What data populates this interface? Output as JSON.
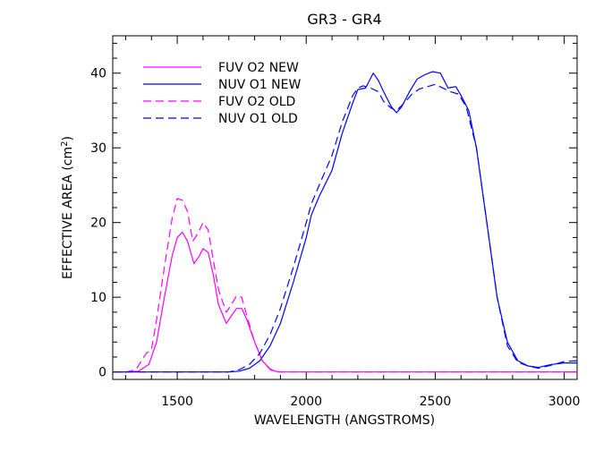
{
  "chart_data": {
    "type": "line",
    "title": "GR3 - GR4",
    "xlabel": "WAVELENGTH (ANGSTROMS)",
    "ylabel": "EFFECTIVE AREA (cm",
    "ylabel_sup": "2",
    "ylabel_end": ")",
    "xlim": [
      1250,
      3050
    ],
    "ylim": [
      -1,
      45
    ],
    "xticks": [
      1500,
      2000,
      2500,
      3000
    ],
    "yticks": [
      0,
      10,
      20,
      30,
      40
    ],
    "grid": false,
    "legend_position": "top-left",
    "series": [
      {
        "name": "FUV O2 NEW",
        "color": "#ff00ff",
        "dash": "solid",
        "points": [
          [
            1250,
            0
          ],
          [
            1300,
            0
          ],
          [
            1350,
            0.1
          ],
          [
            1390,
            1
          ],
          [
            1420,
            4
          ],
          [
            1450,
            10
          ],
          [
            1480,
            15.5
          ],
          [
            1500,
            18
          ],
          [
            1520,
            18.7
          ],
          [
            1540,
            17.5
          ],
          [
            1565,
            14.5
          ],
          [
            1585,
            15.5
          ],
          [
            1600,
            16.5
          ],
          [
            1620,
            16
          ],
          [
            1640,
            13
          ],
          [
            1660,
            9
          ],
          [
            1690,
            6.5
          ],
          [
            1710,
            7.5
          ],
          [
            1730,
            8.5
          ],
          [
            1750,
            8.5
          ],
          [
            1770,
            7
          ],
          [
            1800,
            4
          ],
          [
            1830,
            1.5
          ],
          [
            1860,
            0.4
          ],
          [
            1880,
            0.1
          ],
          [
            1900,
            0
          ],
          [
            2000,
            0
          ],
          [
            2500,
            0
          ],
          [
            3050,
            0
          ]
        ]
      },
      {
        "name": "NUV O1 NEW",
        "color": "#0000ff",
        "dash": "solid",
        "points": [
          [
            1250,
            0
          ],
          [
            1700,
            0
          ],
          [
            1740,
            0.1
          ],
          [
            1780,
            0.5
          ],
          [
            1820,
            1.5
          ],
          [
            1860,
            3.5
          ],
          [
            1900,
            6.5
          ],
          [
            1950,
            12
          ],
          [
            2000,
            18
          ],
          [
            2020,
            21
          ],
          [
            2050,
            23.5
          ],
          [
            2100,
            27
          ],
          [
            2140,
            32
          ],
          [
            2180,
            36
          ],
          [
            2200,
            37.8
          ],
          [
            2230,
            38
          ],
          [
            2260,
            40
          ],
          [
            2280,
            39
          ],
          [
            2300,
            37.5
          ],
          [
            2330,
            35.5
          ],
          [
            2350,
            34.7
          ],
          [
            2370,
            35.5
          ],
          [
            2400,
            37.5
          ],
          [
            2430,
            39.2
          ],
          [
            2460,
            39.8
          ],
          [
            2490,
            40.2
          ],
          [
            2520,
            40
          ],
          [
            2550,
            38
          ],
          [
            2580,
            38.2
          ],
          [
            2600,
            37
          ],
          [
            2630,
            35
          ],
          [
            2660,
            30
          ],
          [
            2700,
            20
          ],
          [
            2740,
            10
          ],
          [
            2780,
            4
          ],
          [
            2820,
            1.5
          ],
          [
            2860,
            0.8
          ],
          [
            2900,
            0.6
          ],
          [
            2950,
            1
          ],
          [
            3000,
            1.2
          ],
          [
            3050,
            1.2
          ]
        ]
      },
      {
        "name": "FUV O2 OLD",
        "color": "#ff00ff",
        "dash": "dashed",
        "points": [
          [
            1250,
            0
          ],
          [
            1300,
            0
          ],
          [
            1340,
            0.3
          ],
          [
            1380,
            2.5
          ],
          [
            1400,
            3
          ],
          [
            1420,
            7
          ],
          [
            1450,
            14
          ],
          [
            1480,
            20.5
          ],
          [
            1500,
            23.2
          ],
          [
            1520,
            23
          ],
          [
            1540,
            21.5
          ],
          [
            1560,
            17.5
          ],
          [
            1580,
            18.5
          ],
          [
            1600,
            20
          ],
          [
            1620,
            19
          ],
          [
            1640,
            15
          ],
          [
            1660,
            11
          ],
          [
            1690,
            8
          ],
          [
            1710,
            9
          ],
          [
            1730,
            10.2
          ],
          [
            1750,
            10
          ],
          [
            1770,
            7.5
          ],
          [
            1800,
            4
          ],
          [
            1830,
            1.5
          ],
          [
            1860,
            0.3
          ],
          [
            1880,
            0
          ],
          [
            2000,
            0
          ],
          [
            2500,
            0
          ],
          [
            3050,
            0
          ]
        ]
      },
      {
        "name": "NUV O1 OLD",
        "color": "#0000ff",
        "dash": "dashed",
        "points": [
          [
            1250,
            0
          ],
          [
            1700,
            0
          ],
          [
            1740,
            0.3
          ],
          [
            1780,
            1
          ],
          [
            1820,
            2.5
          ],
          [
            1860,
            5
          ],
          [
            1900,
            8.5
          ],
          [
            1950,
            14
          ],
          [
            2000,
            20
          ],
          [
            2020,
            22.5
          ],
          [
            2050,
            25
          ],
          [
            2100,
            29
          ],
          [
            2140,
            33.5
          ],
          [
            2180,
            37
          ],
          [
            2200,
            38
          ],
          [
            2220,
            38.3
          ],
          [
            2250,
            38
          ],
          [
            2280,
            37.5
          ],
          [
            2300,
            36.2
          ],
          [
            2330,
            35.3
          ],
          [
            2350,
            35
          ],
          [
            2380,
            36
          ],
          [
            2410,
            37.2
          ],
          [
            2440,
            37.9
          ],
          [
            2470,
            38.2
          ],
          [
            2500,
            38.5
          ],
          [
            2530,
            38
          ],
          [
            2560,
            37.5
          ],
          [
            2590,
            37.2
          ],
          [
            2620,
            35.5
          ],
          [
            2660,
            30
          ],
          [
            2700,
            20
          ],
          [
            2740,
            10
          ],
          [
            2780,
            3.5
          ],
          [
            2820,
            1.3
          ],
          [
            2860,
            0.8
          ],
          [
            2900,
            0.5
          ],
          [
            2950,
            0.9
          ],
          [
            3000,
            1.4
          ],
          [
            3050,
            1.5
          ]
        ]
      }
    ]
  }
}
